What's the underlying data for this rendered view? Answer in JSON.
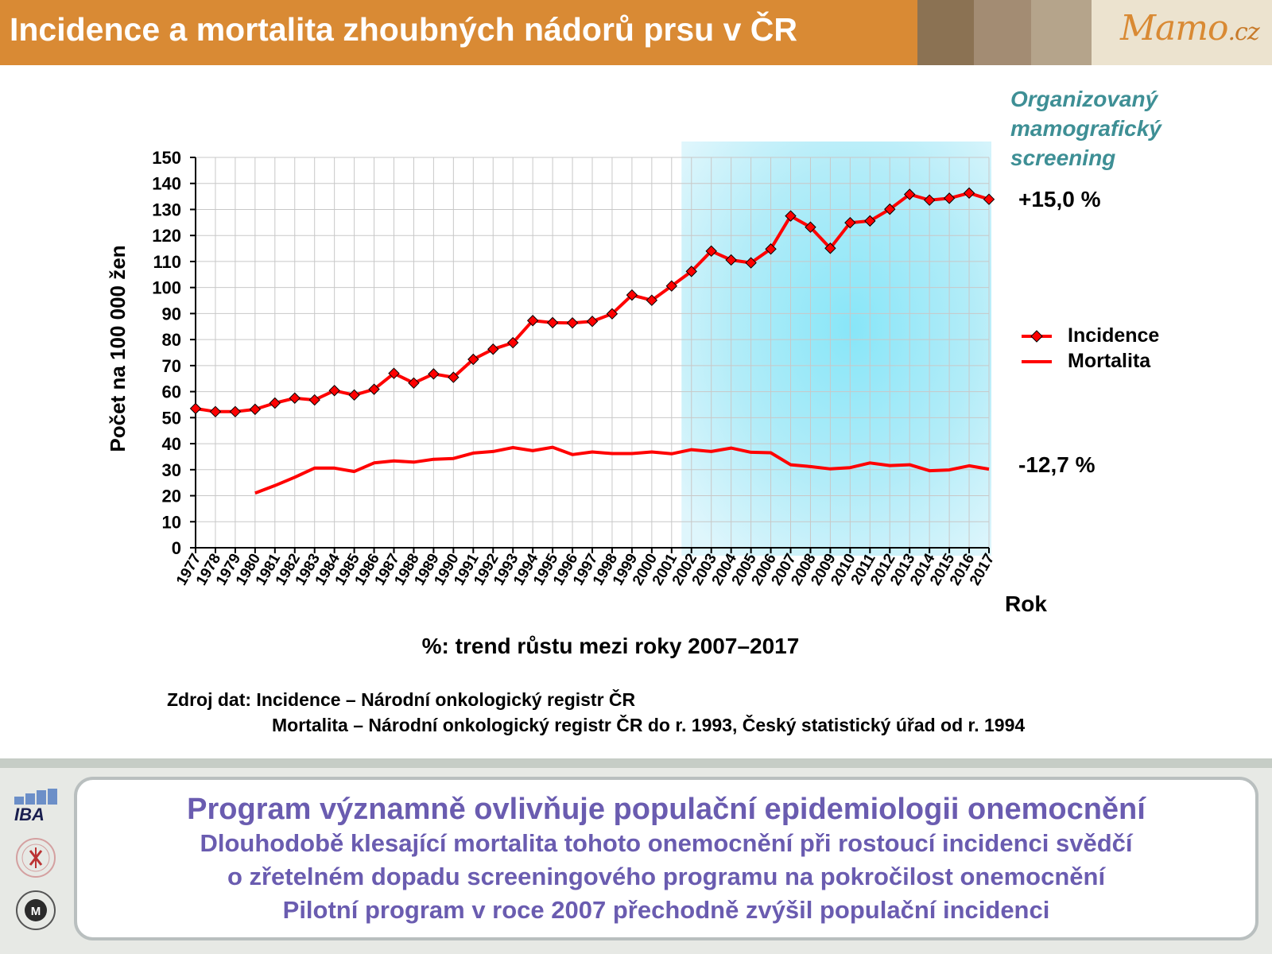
{
  "header": {
    "title": "Incidence a mortalita zhoubných nádorů prsu v ČR",
    "brand": "Mamo",
    "brand_tld": ".cz",
    "color": "#d98a34",
    "swatches": [
      "#8b7253",
      "#a38c73",
      "#b5a48b",
      "#ece3cf"
    ]
  },
  "chart": {
    "screening_label": "Organizovaný\nmamografický\nscreening",
    "incidence_change": "+15,0 %",
    "mortality_change": "-12,7 %",
    "x_unit": "Rok",
    "trend_note": "%: trend růstu mezi roky 2007–2017",
    "legend": {
      "incidence": "Incidence",
      "mortality": "Mortalita"
    }
  },
  "chart_data": {
    "type": "line",
    "ylabel": "Počet  na 100 000 žen",
    "xlabel": "Rok",
    "ylim": [
      0,
      150
    ],
    "yticks": [
      0,
      10,
      20,
      30,
      40,
      50,
      60,
      70,
      80,
      90,
      100,
      110,
      120,
      130,
      140,
      150
    ],
    "grid": true,
    "legend_position": "right",
    "highlight_range": [
      "2002",
      "2017"
    ],
    "categories": [
      "1977",
      "1978",
      "1979",
      "1980",
      "1981",
      "1982",
      "1983",
      "1984",
      "1985",
      "1986",
      "1987",
      "1988",
      "1989",
      "1990",
      "1991",
      "1992",
      "1993",
      "1994",
      "1995",
      "1996",
      "1997",
      "1998",
      "1999",
      "2000",
      "2001",
      "2002",
      "2003",
      "2004",
      "2005",
      "2006",
      "2007",
      "2008",
      "2009",
      "2010",
      "2011",
      "2012",
      "2013",
      "2014",
      "2015",
      "2016",
      "2017"
    ],
    "series": [
      {
        "name": "Incidence",
        "color": "#ff0000",
        "marker": "diamond",
        "values": [
          53.5,
          52.3,
          52.3,
          53.2,
          55.6,
          57.5,
          56.8,
          60.4,
          58.7,
          60.9,
          67.0,
          63.3,
          66.8,
          65.5,
          72.4,
          76.3,
          78.8,
          87.3,
          86.5,
          86.4,
          87.0,
          89.9,
          97.1,
          95.1,
          100.6,
          106.2,
          114.0,
          110.6,
          109.5,
          114.8,
          127.5,
          123.2,
          115.1,
          124.9,
          125.6,
          130.1,
          135.8,
          133.6,
          134.3,
          136.3,
          133.9
        ]
      },
      {
        "name": "Mortalita",
        "color": "#ff0000",
        "marker": "none",
        "values": [
          null,
          null,
          null,
          21.0,
          23.9,
          27.1,
          30.6,
          30.6,
          29.3,
          32.6,
          33.4,
          32.9,
          34.0,
          34.3,
          36.4,
          37.0,
          38.5,
          37.3,
          38.6,
          35.8,
          36.8,
          36.2,
          36.2,
          36.8,
          36.1,
          37.7,
          37.0,
          38.3,
          36.7,
          36.5,
          31.9,
          31.2,
          30.3,
          30.8,
          32.6,
          31.6,
          31.9,
          29.6,
          29.9,
          31.5,
          30.2
        ]
      }
    ]
  },
  "source": {
    "line1": "Zdroj dat: Incidence – Národní onkologický registr ČR",
    "line2": "Mortalita – Národní onkologický registr ČR do r. 1993, Český statistický úřad od r. 1994"
  },
  "footer": {
    "heading": "Program významně ovlivňuje populační epidemiologii onemocnění",
    "lines": [
      "Dlouhodobě klesající mortalita tohoto onemocnění při rostoucí incidenci svědčí",
      "o zřetelném dopadu screeningového programu na pokročilost onemocnění",
      "Pilotní program v roce 2007 přechodně zvýšil populační incidenci"
    ],
    "logo_label": "IBA",
    "text_color": "#6a5cb0"
  }
}
